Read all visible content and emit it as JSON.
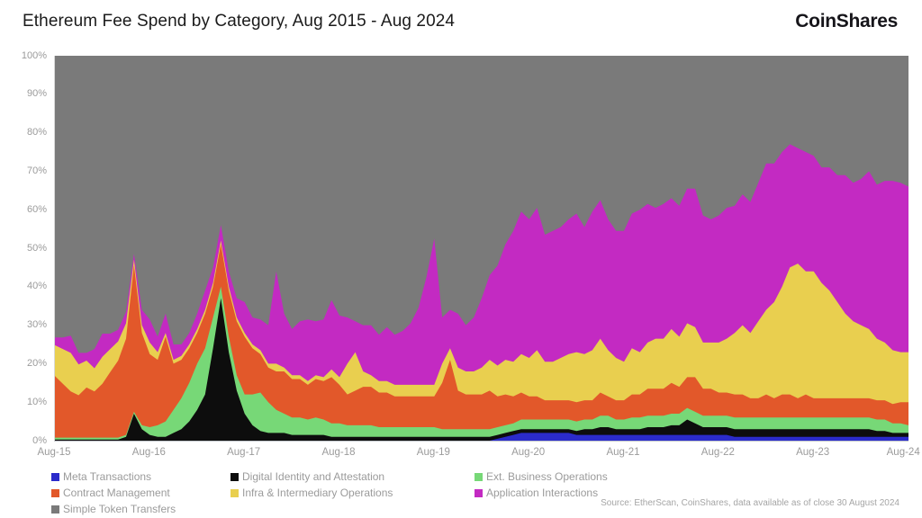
{
  "header": {
    "title": "Ethereum Fee Spend by Category, Aug 2015 - Aug 2024",
    "brand": "CoinShares"
  },
  "source_note": "Source: EtherScan, CoinShares, data available as of close 30 August 2024",
  "chart_data": {
    "type": "area",
    "stacked": true,
    "unit": "percent",
    "title": "Ethereum Fee Spend by Category, Aug 2015 - Aug 2024",
    "xlabel": "",
    "ylabel": "",
    "ylim": [
      0,
      100
    ],
    "grid": false,
    "legend_position": "bottom",
    "x_start": "Aug-2015",
    "x_end": "Aug-2024",
    "x_interval": "monthly",
    "x_axis": {
      "tick_labels": [
        "Aug-15",
        "Aug-16",
        "Aug-17",
        "Aug-18",
        "Aug-19",
        "Aug-20",
        "Aug-21",
        "Aug-22",
        "Aug-23",
        "Aug-24"
      ]
    },
    "y_axis": {
      "tick_labels_top_to_bottom": [
        "100%",
        "90%",
        "80%",
        "70%",
        "60%",
        "50%",
        "40%",
        "30%",
        "20%",
        "10%",
        "0%"
      ]
    },
    "series": [
      {
        "name": "Meta Transactions",
        "color": "#2b2bcb",
        "values": [
          0,
          0,
          0,
          0,
          0,
          0,
          0,
          0,
          0,
          0,
          0,
          0,
          0,
          0,
          0,
          0,
          0,
          0,
          0,
          0,
          0,
          0,
          0,
          0,
          0,
          0,
          0,
          0,
          0,
          0,
          0,
          0,
          0,
          0,
          0,
          0,
          0,
          0,
          0,
          0,
          0,
          0,
          0,
          0,
          0,
          0,
          0,
          0,
          0,
          0,
          0,
          0,
          0,
          0,
          0,
          0,
          0.5,
          1,
          1.5,
          2,
          2,
          2,
          2,
          2,
          2,
          2,
          1.5,
          1.5,
          1.5,
          1.5,
          1.5,
          1.5,
          1.5,
          1.5,
          1.5,
          1.5,
          1.5,
          1.5,
          1.5,
          1.5,
          1.5,
          1.5,
          1.5,
          1.5,
          1.5,
          1.5,
          1,
          1,
          1,
          1,
          1,
          1,
          1,
          1,
          1,
          1,
          1,
          1,
          1,
          1,
          1,
          1,
          1,
          1,
          1,
          1,
          1,
          1,
          1
        ]
      },
      {
        "name": "Digital Identity and Attestation",
        "color": "#0d0d0d",
        "values": [
          0.3,
          0.3,
          0.3,
          0.3,
          0.3,
          0.3,
          0.3,
          0.3,
          0.3,
          1,
          7,
          3,
          1.5,
          1,
          1,
          2,
          3,
          5,
          8,
          12,
          24,
          37,
          23,
          13,
          7,
          4,
          2.5,
          2,
          2,
          2,
          1.5,
          1.5,
          1.5,
          1.5,
          1.5,
          1,
          1,
          1,
          1,
          1,
          1,
          1,
          1,
          1,
          1,
          1,
          1,
          1,
          1,
          1,
          1,
          1,
          1,
          1,
          1,
          1,
          1,
          1,
          1,
          1,
          1,
          1,
          1,
          1,
          1,
          1,
          1,
          1.5,
          1.5,
          2,
          2,
          1.5,
          1.5,
          1.5,
          1.5,
          2,
          2,
          2,
          2.5,
          2.5,
          4,
          3,
          2,
          2,
          2,
          2,
          2,
          2,
          2,
          2,
          2,
          2,
          2,
          2,
          2,
          2,
          2,
          2,
          2,
          2,
          2,
          2,
          2,
          2,
          1.5,
          1.5,
          1,
          1,
          1
        ]
      },
      {
        "name": "Ext. Business Operations",
        "color": "#77d877",
        "values": [
          0.5,
          0.5,
          0.5,
          0.5,
          0.5,
          0.5,
          0.5,
          0.5,
          0.5,
          0.5,
          0.5,
          1,
          2,
          3,
          4,
          6,
          8,
          10,
          12,
          12,
          8,
          3,
          4,
          4,
          5,
          8,
          10,
          8,
          6,
          5,
          4.5,
          4.5,
          4,
          4.5,
          4,
          3.5,
          3.5,
          3,
          3,
          3,
          3,
          2.5,
          2.5,
          2.5,
          2.5,
          2.5,
          2.5,
          2.5,
          2.5,
          2,
          2,
          2,
          2,
          2,
          2,
          2,
          2,
          2,
          2,
          2.5,
          2.5,
          2.5,
          2.5,
          2.5,
          2.5,
          2.5,
          2.5,
          2.5,
          2.5,
          3,
          3,
          2.5,
          2.5,
          3,
          3,
          3,
          3,
          3,
          3,
          3,
          3,
          3,
          3,
          3,
          3,
          3,
          3,
          3,
          3,
          3,
          3,
          3,
          3,
          3,
          3,
          3,
          3,
          3,
          3,
          3,
          3,
          3,
          3,
          3,
          3,
          3,
          2.5,
          2.5,
          2
        ]
      },
      {
        "name": "Contract Management",
        "color": "#e2582a",
        "values": [
          16,
          14,
          12,
          11,
          13,
          12,
          14,
          17,
          20,
          25,
          38,
          24,
          19,
          17,
          22,
          12,
          10,
          9,
          8,
          9,
          8,
          11,
          12,
          14,
          15,
          12,
          10,
          9,
          10,
          11,
          10,
          10,
          9,
          10,
          10,
          12,
          10,
          8,
          9,
          10,
          10,
          9,
          9,
          8,
          8,
          8,
          8,
          8,
          8,
          12,
          18,
          10,
          9,
          9,
          9,
          10,
          8,
          8,
          7,
          7,
          6,
          6,
          5,
          5,
          5,
          5,
          5,
          5,
          5,
          6,
          5,
          5,
          5,
          6,
          6,
          7,
          7,
          7,
          8,
          7,
          8,
          9,
          7,
          7,
          6,
          6,
          6,
          6,
          5,
          5,
          6,
          5,
          6,
          6,
          5,
          6,
          5,
          5,
          5,
          5,
          5,
          5,
          5,
          5,
          5,
          5,
          5,
          5.5,
          6
        ]
      },
      {
        "name": "Infra & Intermediary Operations",
        "color": "#e9cf4f",
        "values": [
          8,
          9,
          10,
          8,
          7,
          6,
          7,
          6,
          5,
          4,
          1.5,
          2,
          3,
          2,
          1,
          1,
          1,
          1,
          1,
          1,
          1,
          1,
          1,
          1,
          1,
          1,
          1,
          1,
          2,
          1,
          1,
          1,
          1,
          1,
          1,
          2,
          2,
          8,
          10,
          4,
          3,
          3,
          3,
          3,
          3,
          3,
          3,
          3,
          3,
          5,
          3,
          6,
          6,
          6,
          7,
          8,
          8,
          9,
          9,
          10,
          10,
          12,
          10,
          10,
          11,
          12,
          13,
          12,
          13,
          14,
          12,
          11,
          10,
          12,
          11,
          12,
          13,
          13,
          14,
          13,
          14,
          13,
          12,
          12,
          13,
          14,
          16,
          18,
          17,
          20,
          22,
          25,
          28,
          33,
          35,
          32,
          33,
          30,
          28,
          25,
          22,
          20,
          19,
          18,
          16,
          15,
          14,
          13,
          13
        ]
      },
      {
        "name": "Application Interactions",
        "color": "#c32ac2",
        "values": [
          2,
          3,
          4.5,
          3,
          2,
          5,
          6,
          4,
          3,
          3,
          1.5,
          4,
          6,
          4,
          5,
          4,
          3,
          3,
          4,
          5,
          4,
          4,
          4,
          5,
          8,
          7,
          8,
          10,
          24,
          14,
          12,
          14,
          16,
          14,
          15,
          18,
          16,
          12,
          8,
          12,
          13,
          12,
          14,
          13,
          14,
          16,
          20,
          28,
          38,
          12,
          10,
          14,
          12,
          14,
          18,
          22,
          26,
          30,
          34,
          37,
          36,
          37,
          33,
          34,
          34,
          35,
          36,
          33,
          36,
          36,
          34,
          33,
          34,
          35,
          37,
          36,
          34,
          35,
          34,
          34,
          35,
          36,
          33,
          32,
          33,
          34,
          33,
          34,
          34,
          36,
          38,
          36,
          35,
          32,
          30,
          31,
          30,
          30,
          32,
          33,
          36,
          36,
          38,
          41,
          40,
          42,
          44,
          44,
          43
        ]
      },
      {
        "name": "Simple Token Transfers",
        "color": "#7a7a7a",
        "remainder_to_100": true
      }
    ]
  }
}
